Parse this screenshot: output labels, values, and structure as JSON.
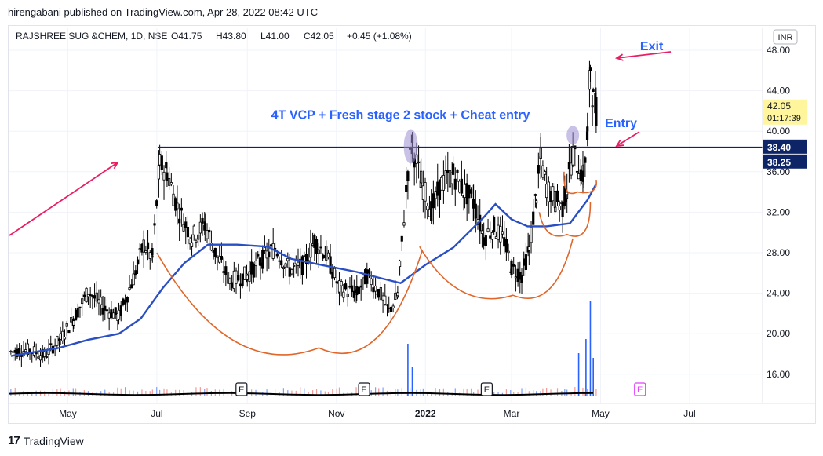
{
  "publisher": "hirengabani published on TradingView.com, Apr 28, 2022 08:42 UTC",
  "footer": {
    "brand": "TradingView"
  },
  "colors": {
    "candle": "#000000",
    "ma": "#2a4fc2",
    "resistance": "#0d2466",
    "cups": "#e0662a",
    "arrows": "#e91e63",
    "annotation": "#2962ff",
    "volume_up": "#2962ff",
    "volume_down": "#ef5350",
    "highlight": "#9c8fd1",
    "last_price_bg": "#fff59d"
  },
  "chart_data": {
    "type": "candlestick",
    "title": "RAJSHREE SUG &CHEM, 1D, NSE",
    "ohlc_summary": {
      "open": "O41.75",
      "high": "H43.80",
      "low": "L41.00",
      "close": "C42.05",
      "change": "+0.45 (+1.08%)"
    },
    "currency": "INR",
    "ylim": [
      13,
      50
    ],
    "y_ticks": [
      "48.00",
      "44.00",
      "40.00",
      "36.00",
      "32.00",
      "28.00",
      "24.00",
      "20.00",
      "16.00"
    ],
    "y_tick_values": [
      48,
      44,
      40,
      36,
      32,
      28,
      24,
      20,
      16
    ],
    "x_labels": [
      {
        "label": "May",
        "date": "2021-05-01"
      },
      {
        "label": "Jul",
        "date": "2021-07-01"
      },
      {
        "label": "Sep",
        "date": "2021-09-01"
      },
      {
        "label": "Nov",
        "date": "2021-11-01"
      },
      {
        "label": "2022",
        "date": "2022-01-01"
      },
      {
        "label": "Mar",
        "date": "2022-03-01"
      },
      {
        "label": "May",
        "date": "2022-05-01"
      },
      {
        "label": "Jul",
        "date": "2022-07-01"
      }
    ],
    "xlim": [
      "2021-03-22",
      "2022-08-20"
    ],
    "price_labels": [
      {
        "text": "42.05",
        "sub": "01:17:39",
        "value": 42.05,
        "style": "last"
      },
      {
        "text": "38.40",
        "value": 38.4,
        "style": "line"
      },
      {
        "text": "38.25",
        "value": 38.25,
        "style": "line"
      }
    ],
    "closes": [
      {
        "date": "2021-03-23",
        "close": 18.2
      },
      {
        "date": "2021-04-05",
        "close": 18.4
      },
      {
        "date": "2021-04-15",
        "close": 17.8
      },
      {
        "date": "2021-04-26",
        "close": 19.5
      },
      {
        "date": "2021-05-05",
        "close": 21.5
      },
      {
        "date": "2021-05-15",
        "close": 24.2
      },
      {
        "date": "2021-05-25",
        "close": 22.6
      },
      {
        "date": "2021-06-05",
        "close": 21.7
      },
      {
        "date": "2021-06-15",
        "close": 25.5
      },
      {
        "date": "2021-06-22",
        "close": 28.8
      },
      {
        "date": "2021-06-28",
        "close": 27.5
      },
      {
        "date": "2021-07-03",
        "close": 36.8
      },
      {
        "date": "2021-07-08",
        "close": 36.0
      },
      {
        "date": "2021-07-15",
        "close": 32.5
      },
      {
        "date": "2021-07-25",
        "close": 29.5
      },
      {
        "date": "2021-08-03",
        "close": 30.8
      },
      {
        "date": "2021-08-10",
        "close": 28.0
      },
      {
        "date": "2021-08-20",
        "close": 25.2
      },
      {
        "date": "2021-09-01",
        "close": 25.8
      },
      {
        "date": "2021-09-10",
        "close": 27.2
      },
      {
        "date": "2021-09-20",
        "close": 28.5
      },
      {
        "date": "2021-09-30",
        "close": 26.3
      },
      {
        "date": "2021-10-10",
        "close": 26.8
      },
      {
        "date": "2021-10-17",
        "close": 29.2
      },
      {
        "date": "2021-10-25",
        "close": 27.8
      },
      {
        "date": "2021-11-03",
        "close": 24.5
      },
      {
        "date": "2021-11-15",
        "close": 24.0
      },
      {
        "date": "2021-11-22",
        "close": 25.8
      },
      {
        "date": "2021-11-30",
        "close": 24.2
      },
      {
        "date": "2021-12-07",
        "close": 22.2
      },
      {
        "date": "2021-12-13",
        "close": 23.8
      },
      {
        "date": "2021-12-20",
        "close": 36.2
      },
      {
        "date": "2021-12-23",
        "close": 38.6
      },
      {
        "date": "2021-12-29",
        "close": 35.0
      },
      {
        "date": "2022-01-05",
        "close": 32.2
      },
      {
        "date": "2022-01-12",
        "close": 34.8
      },
      {
        "date": "2022-01-20",
        "close": 35.8
      },
      {
        "date": "2022-01-28",
        "close": 34.0
      },
      {
        "date": "2022-02-03",
        "close": 33.0
      },
      {
        "date": "2022-02-10",
        "close": 29.5
      },
      {
        "date": "2022-02-17",
        "close": 30.5
      },
      {
        "date": "2022-02-24",
        "close": 29.2
      },
      {
        "date": "2022-03-01",
        "close": 26.5
      },
      {
        "date": "2022-03-08",
        "close": 25.8
      },
      {
        "date": "2022-03-13",
        "close": 28.3
      },
      {
        "date": "2022-03-18",
        "close": 33.8
      },
      {
        "date": "2022-03-21",
        "close": 37.2
      },
      {
        "date": "2022-03-25",
        "close": 34.5
      },
      {
        "date": "2022-03-31",
        "close": 33.2
      },
      {
        "date": "2022-04-05",
        "close": 32.5
      },
      {
        "date": "2022-04-08",
        "close": 34.5
      },
      {
        "date": "2022-04-12",
        "close": 37.8
      },
      {
        "date": "2022-04-16",
        "close": 36.5
      },
      {
        "date": "2022-04-19",
        "close": 35.5
      },
      {
        "date": "2022-04-22",
        "close": 39.5
      },
      {
        "date": "2022-04-24",
        "close": 46.5
      },
      {
        "date": "2022-04-26",
        "close": 43.0
      },
      {
        "date": "2022-04-28",
        "close": 42.05
      }
    ],
    "moving_average": [
      {
        "date": "2021-03-23",
        "value": 17.8
      },
      {
        "date": "2021-04-25",
        "value": 18.6
      },
      {
        "date": "2021-05-15",
        "value": 19.4
      },
      {
        "date": "2021-06-05",
        "value": 20.0
      },
      {
        "date": "2021-06-20",
        "value": 21.5
      },
      {
        "date": "2021-07-05",
        "value": 24.5
      },
      {
        "date": "2021-07-20",
        "value": 27.0
      },
      {
        "date": "2021-08-05",
        "value": 28.8
      },
      {
        "date": "2021-08-25",
        "value": 28.8
      },
      {
        "date": "2021-09-15",
        "value": 28.6
      },
      {
        "date": "2021-10-01",
        "value": 27.4
      },
      {
        "date": "2021-10-25",
        "value": 26.7
      },
      {
        "date": "2021-11-15",
        "value": 26.1
      },
      {
        "date": "2021-12-01",
        "value": 25.5
      },
      {
        "date": "2021-12-15",
        "value": 25.0
      },
      {
        "date": "2022-01-01",
        "value": 26.8
      },
      {
        "date": "2022-01-20",
        "value": 28.5
      },
      {
        "date": "2022-02-10",
        "value": 31.5
      },
      {
        "date": "2022-02-18",
        "value": 32.8
      },
      {
        "date": "2022-03-01",
        "value": 31.3
      },
      {
        "date": "2022-03-12",
        "value": 30.6
      },
      {
        "date": "2022-03-25",
        "value": 30.6
      },
      {
        "date": "2022-04-10",
        "value": 30.9
      },
      {
        "date": "2022-04-22",
        "value": 33.2
      },
      {
        "date": "2022-04-28",
        "value": 34.8
      }
    ],
    "volume_spikes": [
      {
        "date": "2021-12-20",
        "value": 0.55
      },
      {
        "date": "2021-12-23",
        "value": 0.3
      },
      {
        "date": "2022-04-16",
        "value": 0.45
      },
      {
        "date": "2022-04-21",
        "value": 0.6
      },
      {
        "date": "2022-04-24",
        "value": 1.0
      },
      {
        "date": "2022-04-26",
        "value": 0.4
      }
    ],
    "event_markers": [
      {
        "label": "E",
        "date": "2021-08-28",
        "future": false
      },
      {
        "label": "E",
        "date": "2021-11-20",
        "future": false
      },
      {
        "label": "E",
        "date": "2022-02-12",
        "future": false
      },
      {
        "label": "E",
        "date": "2022-05-28",
        "future": true
      }
    ],
    "resistance_line": {
      "value": 38.4,
      "from": "2021-07-02",
      "to": "2022-08-20"
    },
    "cups": [
      {
        "from": "2021-07-01",
        "from_value": 28.0,
        "bottom": "2021-10-20",
        "bottom_value": 18.6,
        "to": "2021-12-30",
        "to_value": 28.3
      },
      {
        "from": "2021-12-28",
        "from_value": 28.6,
        "bottom": "2022-03-02",
        "bottom_value": 23.8,
        "to": "2022-04-12",
        "to_value": 29.4
      },
      {
        "from": "2022-03-20",
        "from_value": 32.0,
        "bottom": "2022-04-08",
        "bottom_value": 29.8,
        "to": "2022-04-24",
        "to_value": 33.0
      },
      {
        "from": "2022-04-06",
        "from_value": 36.0,
        "bottom": "2022-04-15",
        "bottom_value": 34.0,
        "to": "2022-04-28",
        "to_value": 35.2
      }
    ],
    "annotations": [
      {
        "text": "4T VCP + Fresh stage 2 stock + Cheat entry",
        "date": "2021-12-15",
        "value": 41.2
      },
      {
        "text": "Exit",
        "date": "2022-06-05",
        "value": 48.0
      },
      {
        "text": "Entry",
        "date": "2022-05-15",
        "value": 40.4
      }
    ]
  }
}
